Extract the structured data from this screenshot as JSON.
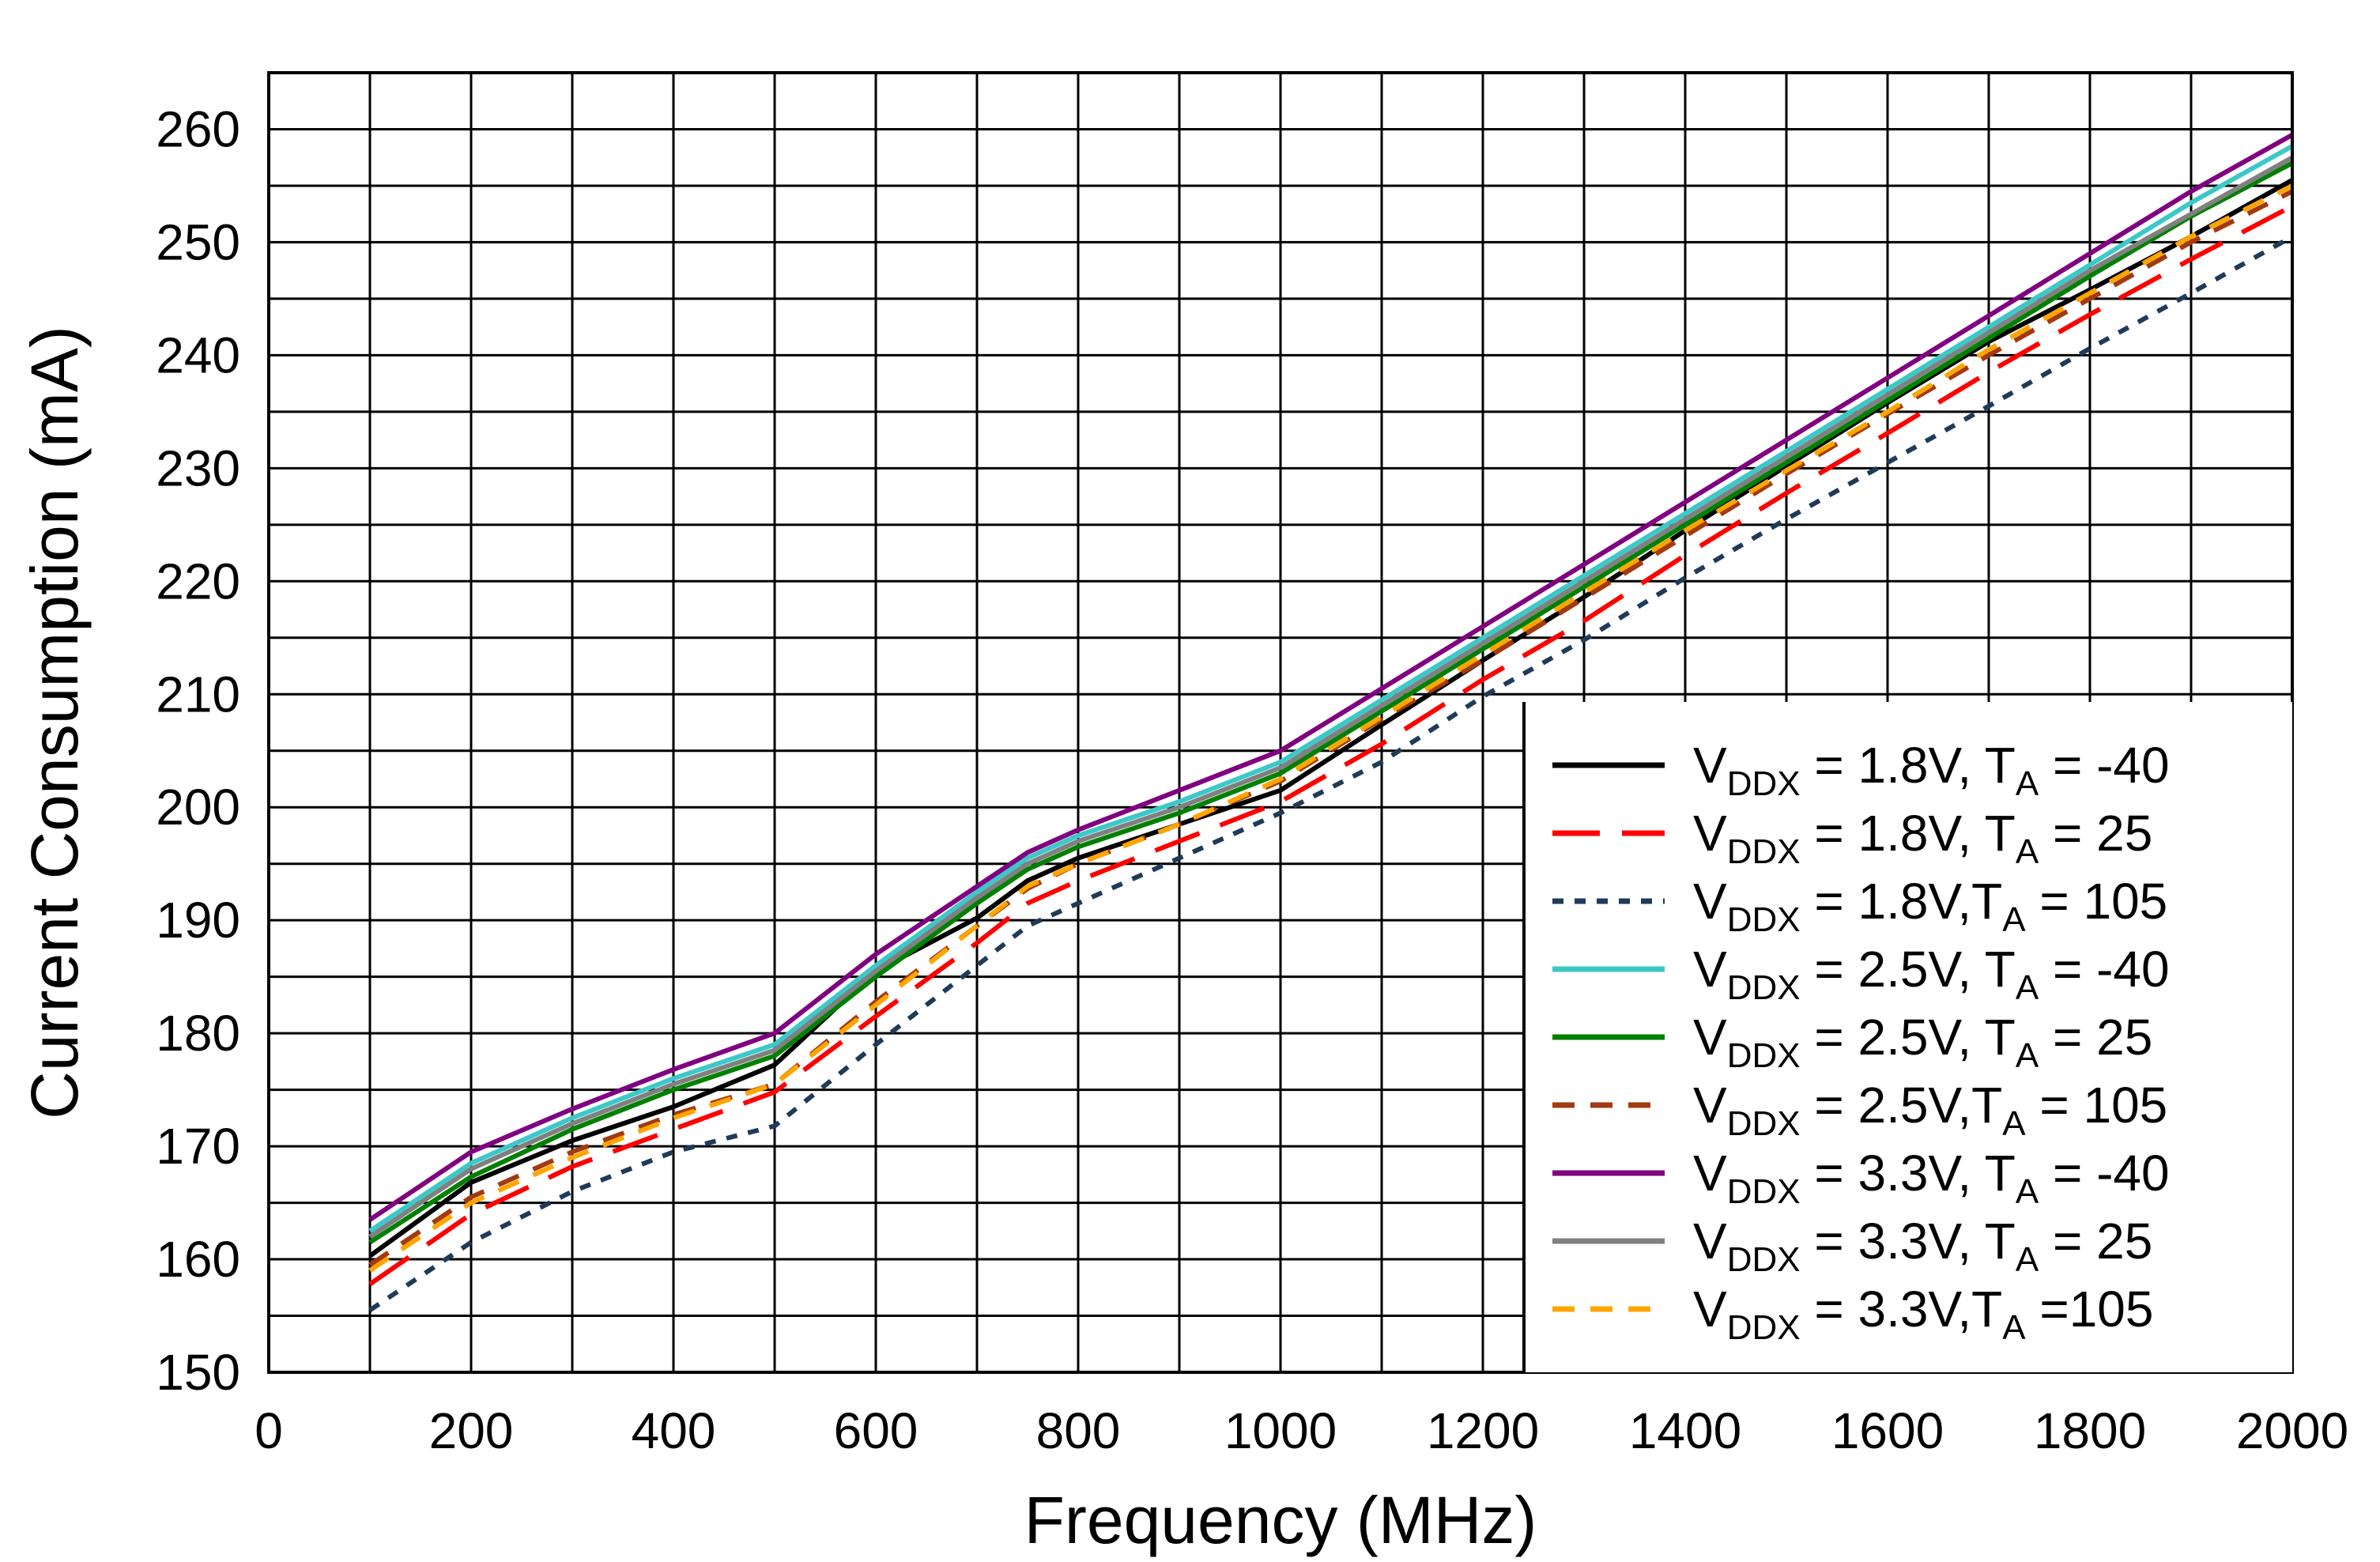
{
  "chart_data": {
    "type": "line",
    "xlabel": "Frequency (MHz)",
    "ylabel": "Current Consumption (mA)",
    "xlim": [
      0,
      2000
    ],
    "ylim": [
      150,
      265
    ],
    "x_ticks": [
      "0",
      "200",
      "400",
      "600",
      "800",
      "1000",
      "1200",
      "1400",
      "1600",
      "1800",
      "2000"
    ],
    "y_ticks": [
      "150",
      "160",
      "170",
      "180",
      "190",
      "200",
      "210",
      "220",
      "230",
      "240",
      "250",
      "260"
    ],
    "grid": true,
    "legend_position": "bottom-right",
    "x": [
      100,
      200,
      300,
      400,
      500,
      600,
      700,
      750,
      800,
      900,
      1000,
      1100,
      1200,
      1300,
      1400,
      1500,
      1600,
      1700,
      1800,
      1900,
      2000
    ],
    "series": [
      {
        "name_prefix": "V",
        "name_sub1": "DDX",
        "name_mid": " = 1.8V, T",
        "name_sub2": "A",
        "name_suffix": " = -40",
        "color": "#000000",
        "dash": "solid",
        "values": [
          160.3,
          166.8,
          170.5,
          173.5,
          177.2,
          185.5,
          190.2,
          193.5,
          195.5,
          198.5,
          201.5,
          207.3,
          213.0,
          218.6,
          224.5,
          230.2,
          235.8,
          241.2,
          245.8,
          250.5,
          255.5
        ]
      },
      {
        "name_prefix": "V",
        "name_sub1": "DDX",
        "name_mid": " = 1.8V, T",
        "name_sub2": "A",
        "name_suffix": " = 25",
        "color": "#ff0000",
        "dash": "longdash",
        "values": [
          157.8,
          164.0,
          168.2,
          171.5,
          174.8,
          181.5,
          188.0,
          191.5,
          193.5,
          197.0,
          200.5,
          205.6,
          211.3,
          216.5,
          222.3,
          227.8,
          233.1,
          238.5,
          243.6,
          248.5,
          253.2
        ]
      },
      {
        "name_prefix": "V",
        "name_sub1": "DDX",
        "name_mid": " = 1.8V,T",
        "name_sub2": "A",
        "name_suffix": " = 105",
        "color": "#1f3b5a",
        "dash": "dot",
        "values": [
          155.5,
          161.5,
          166.0,
          169.5,
          171.8,
          179.0,
          186.0,
          189.5,
          191.5,
          195.5,
          199.5,
          204.0,
          209.8,
          214.8,
          220.3,
          225.5,
          230.5,
          235.5,
          240.6,
          245.5,
          250.5
        ]
      },
      {
        "name_prefix": "V",
        "name_sub1": "DDX",
        "name_mid": " = 2.5V, T",
        "name_sub2": "A",
        "name_suffix": " = -40",
        "color": "#3cc8c8",
        "dash": "solid",
        "values": [
          162.5,
          168.5,
          172.5,
          176.0,
          179.0,
          186.0,
          192.5,
          195.5,
          197.5,
          200.5,
          204.0,
          209.5,
          215.0,
          220.5,
          226.0,
          231.5,
          237.0,
          242.5,
          248.0,
          253.5,
          258.5
        ]
      },
      {
        "name_prefix": "V",
        "name_sub1": "DDX",
        "name_mid": " = 2.5V, T",
        "name_sub2": "A",
        "name_suffix": " = 25",
        "color": "#008000",
        "dash": "solid",
        "values": [
          161.5,
          167.3,
          171.5,
          175.0,
          178.0,
          185.0,
          191.5,
          194.5,
          196.5,
          199.5,
          203.0,
          208.5,
          214.0,
          219.5,
          225.0,
          230.5,
          236.0,
          241.5,
          247.0,
          252.3,
          257.0
        ]
      },
      {
        "name_prefix": "V",
        "name_sub1": "DDX",
        "name_mid": " = 2.5V,T",
        "name_sub2": "A",
        "name_suffix": " = 105",
        "color": "#a33a0f",
        "dash": "dash",
        "values": [
          159.5,
          165.5,
          169.5,
          172.8,
          175.5,
          182.8,
          189.5,
          192.8,
          195.0,
          198.5,
          202.3,
          207.8,
          213.0,
          218.5,
          224.0,
          229.5,
          234.8,
          240.0,
          245.0,
          250.0,
          254.5
        ]
      },
      {
        "name_prefix": "V",
        "name_sub1": "DDX",
        "name_mid": " = 3.3V, T",
        "name_sub2": "A",
        "name_suffix": " = -40",
        "color": "#800080",
        "dash": "solid",
        "values": [
          163.5,
          169.5,
          173.3,
          176.8,
          180.0,
          187.0,
          193.0,
          196.0,
          198.0,
          201.5,
          205.0,
          210.5,
          216.0,
          221.5,
          227.0,
          232.5,
          238.0,
          243.5,
          249.0,
          254.5,
          259.5
        ]
      },
      {
        "name_prefix": "V",
        "name_sub1": "DDX",
        "name_mid": " = 3.3V, T",
        "name_sub2": "A",
        "name_suffix": " = 25",
        "color": "#808080",
        "dash": "solid",
        "values": [
          162.0,
          168.0,
          172.0,
          175.5,
          178.5,
          185.5,
          192.0,
          195.0,
          197.0,
          200.0,
          203.5,
          209.0,
          214.5,
          220.0,
          225.5,
          231.0,
          236.5,
          242.0,
          247.5,
          252.5,
          257.5
        ]
      },
      {
        "name_prefix": "V",
        "name_sub1": "DDX",
        "name_mid": " = 3.3V,T",
        "name_sub2": "A",
        "name_suffix": " =105",
        "color": "#ffa500",
        "dash": "dash",
        "values": [
          159.0,
          165.0,
          169.0,
          172.5,
          175.5,
          182.5,
          189.5,
          193.0,
          195.0,
          198.5,
          202.5,
          208.0,
          213.5,
          219.0,
          224.5,
          229.8,
          235.0,
          240.5,
          245.5,
          250.5,
          255.0
        ]
      }
    ]
  }
}
